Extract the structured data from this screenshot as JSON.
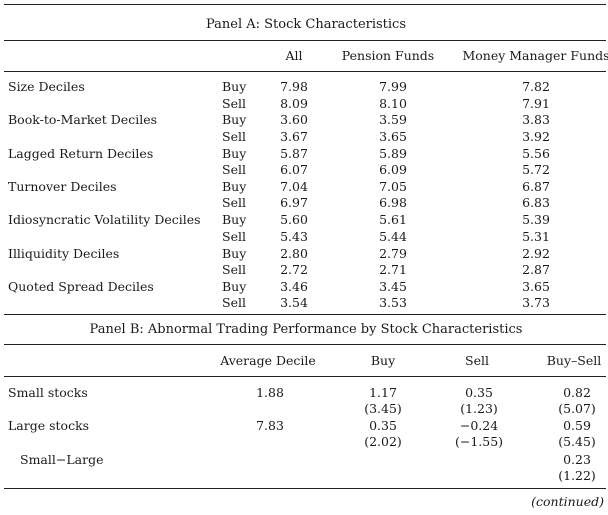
{
  "panel_a": {
    "title": "Panel A: Stock Characteristics",
    "headers": [
      "All",
      "Pension Funds",
      "Money Manager Funds"
    ],
    "rows": [
      {
        "label": "Size Deciles",
        "buy": [
          "7.98",
          "7.99",
          "7.82"
        ],
        "sell": [
          "8.09",
          "8.10",
          "7.91"
        ]
      },
      {
        "label": "Book-to-Market Deciles",
        "buy": [
          "3.60",
          "3.59",
          "3.83"
        ],
        "sell": [
          "3.67",
          "3.65",
          "3.92"
        ]
      },
      {
        "label": "Lagged Return Deciles",
        "buy": [
          "5.87",
          "5.89",
          "5.56"
        ],
        "sell": [
          "6.07",
          "6.09",
          "5.72"
        ]
      },
      {
        "label": "Turnover Deciles",
        "buy": [
          "7.04",
          "7.05",
          "6.87"
        ],
        "sell": [
          "6.97",
          "6.98",
          "6.83"
        ]
      },
      {
        "label": "Idiosyncratic Volatility Deciles",
        "buy": [
          "5.60",
          "5.61",
          "5.39"
        ],
        "sell": [
          "5.43",
          "5.44",
          "5.31"
        ]
      },
      {
        "label": "Illiquidity Deciles",
        "buy": [
          "2.80",
          "2.79",
          "2.92"
        ],
        "sell": [
          "2.72",
          "2.71",
          "2.87"
        ]
      },
      {
        "label": "Quoted Spread Deciles",
        "buy": [
          "3.46",
          "3.45",
          "3.65"
        ],
        "sell": [
          "3.54",
          "3.53",
          "3.73"
        ]
      }
    ],
    "buy_label": "Buy",
    "sell_label": "Sell"
  },
  "panel_b": {
    "title": "Panel B: Abnormal Trading Performance by Stock Characteristics",
    "headers": [
      "Average Decile",
      "Buy",
      "Sell",
      "Buy–Sell"
    ],
    "rows": [
      {
        "label": "Small stocks",
        "avg": "1.88",
        "buy": "1.17",
        "buy_t": "(3.45)",
        "sell": "0.35",
        "sell_t": "(1.23)",
        "bs": "0.82",
        "bs_t": "(5.07)"
      },
      {
        "label": "Large stocks",
        "avg": "7.83",
        "buy": "0.35",
        "buy_t": "(2.02)",
        "sell": "−0.24",
        "sell_t": "(−1.55)",
        "bs": "0.59",
        "bs_t": "(5.45)"
      },
      {
        "label": "Small−Large",
        "avg": "",
        "buy": "",
        "buy_t": "",
        "sell": "",
        "sell_t": "",
        "bs": "0.23",
        "bs_t": "(1.22)"
      }
    ]
  },
  "footer": {
    "continued": "(continued)"
  }
}
